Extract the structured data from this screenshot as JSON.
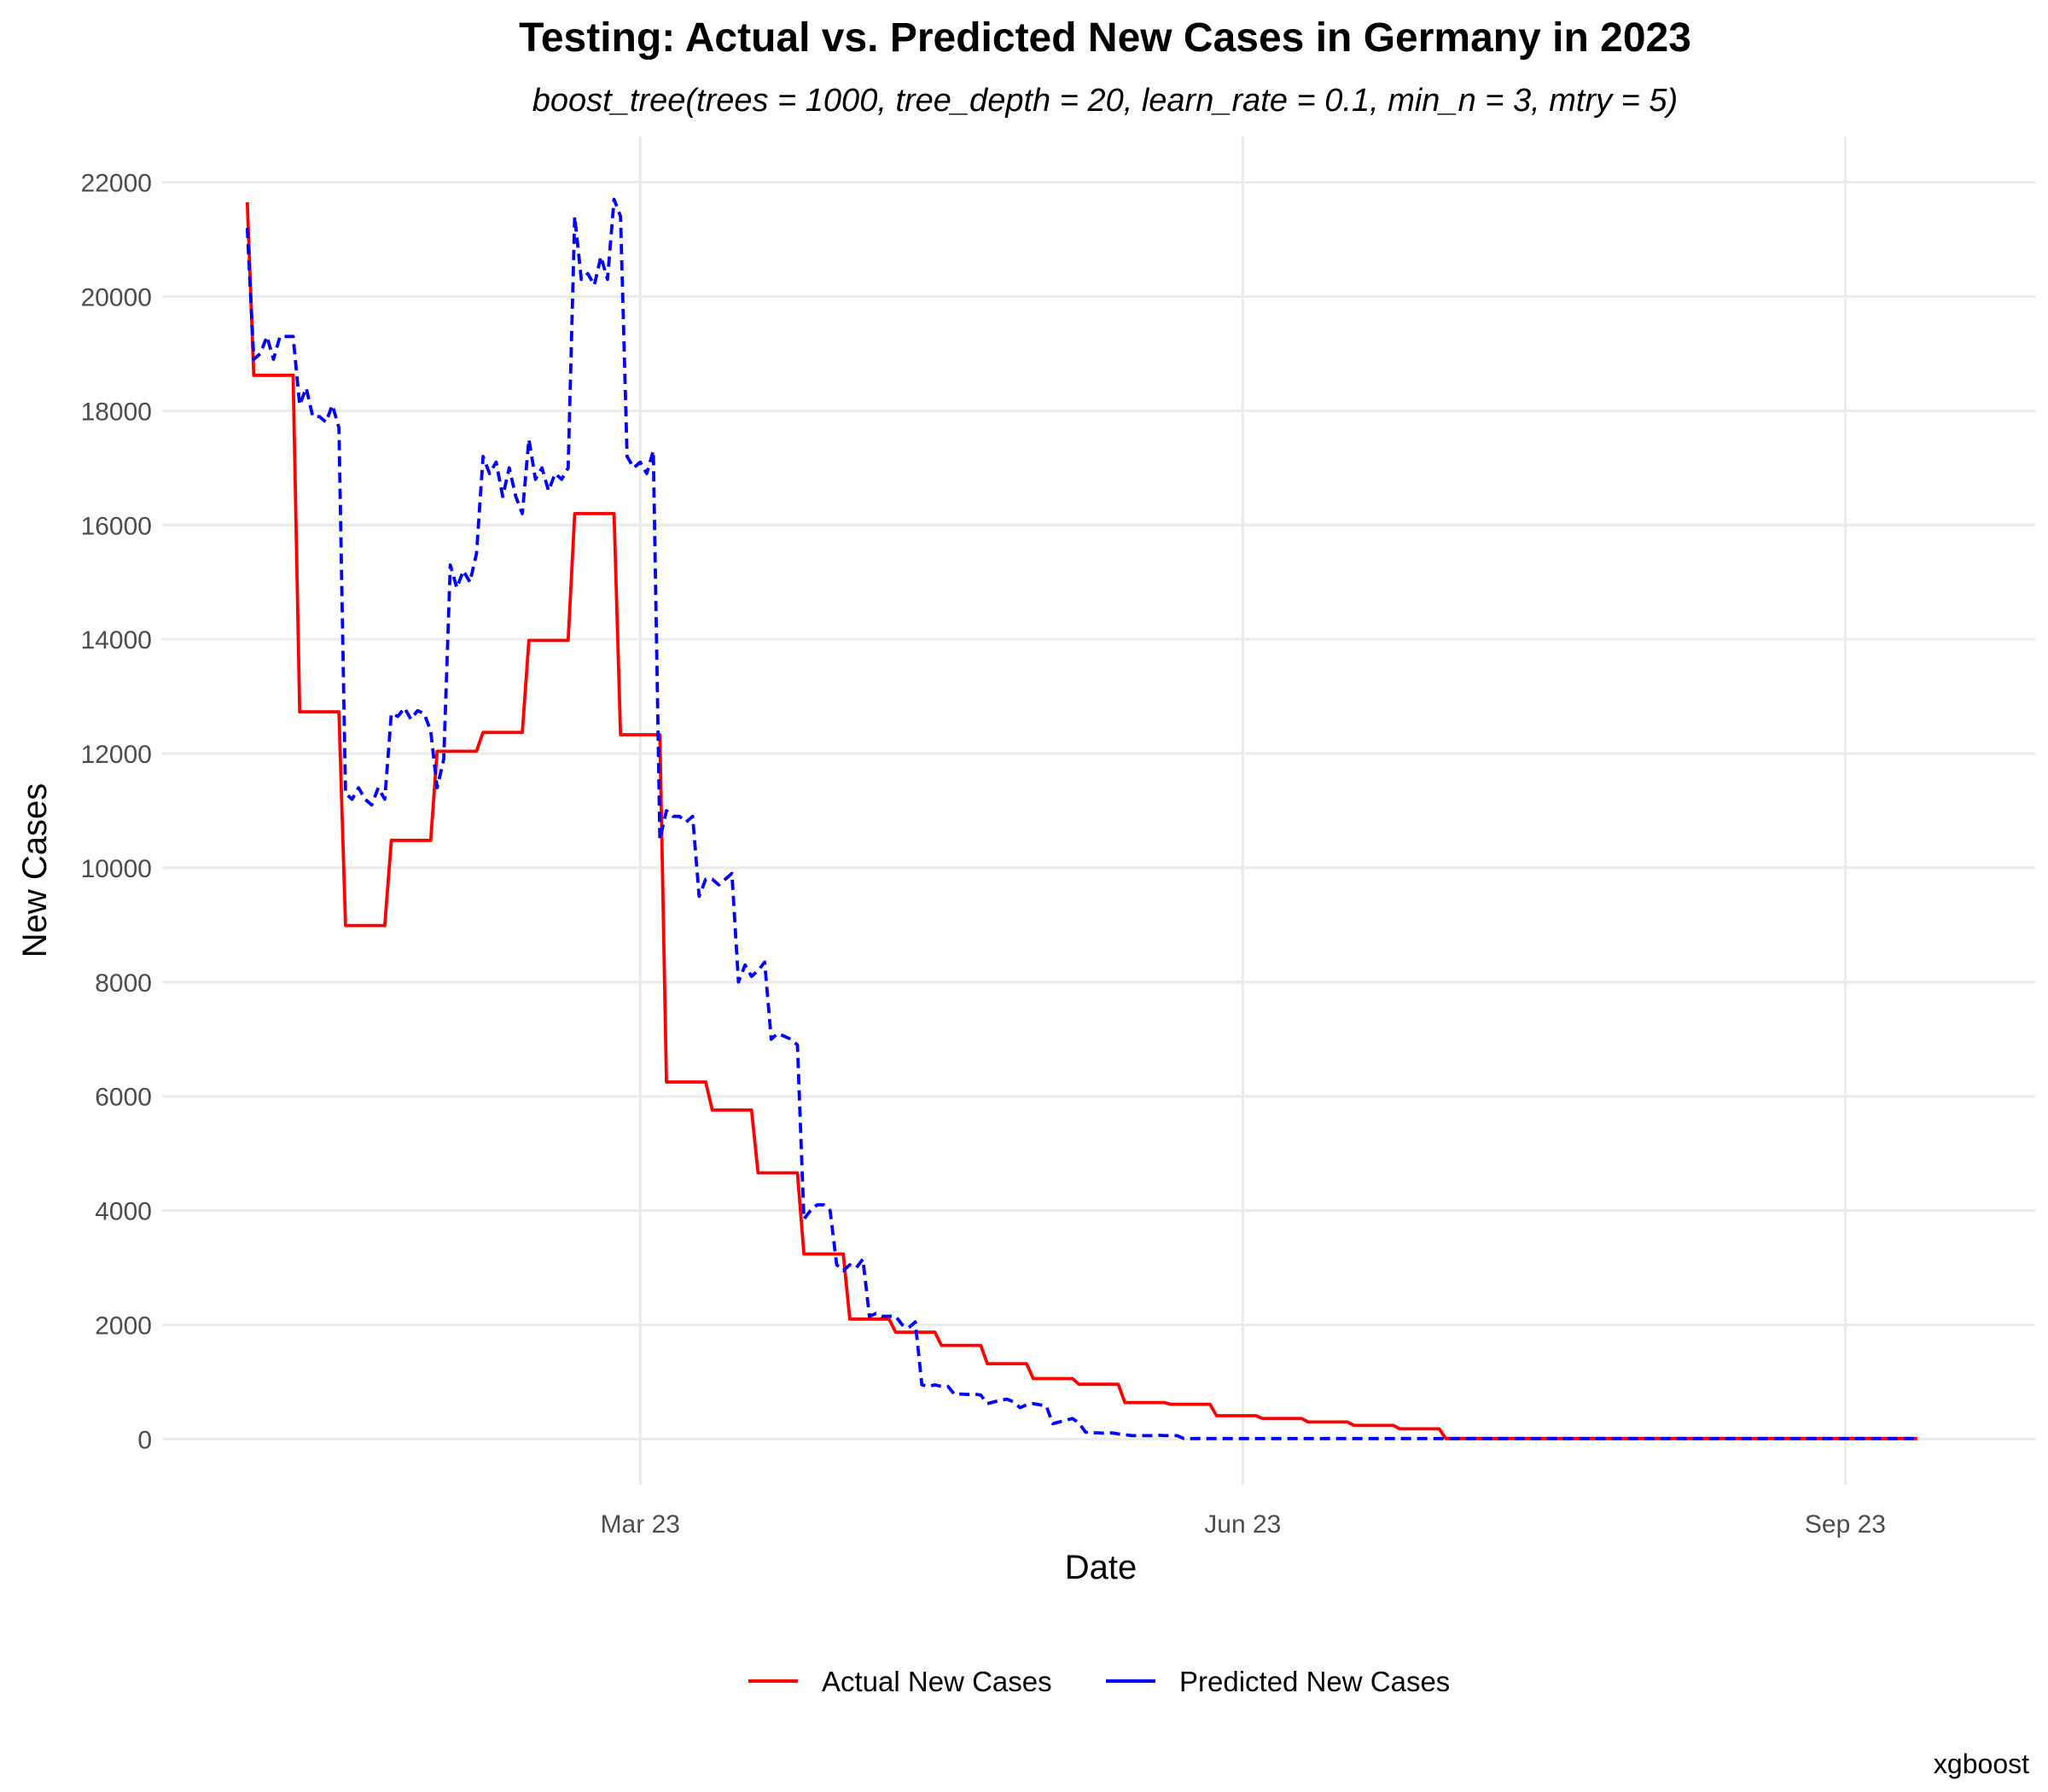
{
  "chart_data": {
    "type": "line",
    "title": "Testing: Actual vs. Predicted New Cases in Germany in 2023",
    "subtitle": "boost_tree(trees = 1000, tree_depth = 20, learn_rate = 0.1, min_n = 3, mtry = 5)",
    "xlabel": "Date",
    "ylabel": "New Cases",
    "caption": "xgboost",
    "x_ticks": [
      {
        "label": "Mar 23",
        "day": 60
      },
      {
        "label": "Jun 23",
        "day": 152
      },
      {
        "label": "Sep 23",
        "day": 244
      }
    ],
    "xlim_days": [
      -13,
      273
    ],
    "ylim": [
      -800,
      22800
    ],
    "y_ticks": [
      0,
      2000,
      4000,
      6000,
      8000,
      10000,
      12000,
      14000,
      16000,
      18000,
      20000,
      22000
    ],
    "grid": true,
    "legend_position": "bottom",
    "series": [
      {
        "name": "Actual New Cases",
        "color": "#ff0000",
        "dash": "solid",
        "points": [
          [
            0,
            21650
          ],
          [
            1,
            18620
          ],
          [
            7,
            18620
          ],
          [
            8,
            12730
          ],
          [
            14,
            12730
          ],
          [
            15,
            8990
          ],
          [
            21,
            8990
          ],
          [
            22,
            10480
          ],
          [
            28,
            10480
          ],
          [
            29,
            12040
          ],
          [
            35,
            12040
          ],
          [
            36,
            12370
          ],
          [
            42,
            12370
          ],
          [
            43,
            13980
          ],
          [
            49,
            13980
          ],
          [
            50,
            16200
          ],
          [
            56,
            16200
          ],
          [
            57,
            12330
          ],
          [
            63,
            12330
          ],
          [
            64,
            6250
          ],
          [
            70,
            6250
          ],
          [
            71,
            5760
          ],
          [
            77,
            5760
          ],
          [
            78,
            4660
          ],
          [
            84,
            4660
          ],
          [
            85,
            3240
          ],
          [
            91,
            3240
          ],
          [
            92,
            2100
          ],
          [
            98,
            2100
          ],
          [
            99,
            1870
          ],
          [
            105,
            1870
          ],
          [
            106,
            1640
          ],
          [
            112,
            1640
          ],
          [
            113,
            1320
          ],
          [
            119,
            1320
          ],
          [
            120,
            1060
          ],
          [
            126,
            1060
          ],
          [
            127,
            960
          ],
          [
            133,
            960
          ],
          [
            134,
            640
          ],
          [
            140,
            640
          ],
          [
            141,
            610
          ],
          [
            147,
            610
          ],
          [
            148,
            410
          ],
          [
            154,
            410
          ],
          [
            155,
            360
          ],
          [
            161,
            360
          ],
          [
            162,
            300
          ],
          [
            168,
            300
          ],
          [
            169,
            240
          ],
          [
            175,
            240
          ],
          [
            176,
            180
          ],
          [
            182,
            180
          ],
          [
            183,
            10
          ],
          [
            255,
            10
          ]
        ]
      },
      {
        "name": "Predicted New Cases",
        "color": "#0000ff",
        "dash": "dashed",
        "points": [
          [
            0,
            21200
          ],
          [
            1,
            18900
          ],
          [
            2,
            19000
          ],
          [
            3,
            19300
          ],
          [
            4,
            18900
          ],
          [
            5,
            19300
          ],
          [
            6,
            19300
          ],
          [
            7,
            19300
          ],
          [
            8,
            18100
          ],
          [
            9,
            18400
          ],
          [
            10,
            17900
          ],
          [
            11,
            17900
          ],
          [
            12,
            17800
          ],
          [
            13,
            18100
          ],
          [
            14,
            17700
          ],
          [
            15,
            11300
          ],
          [
            16,
            11200
          ],
          [
            17,
            11400
          ],
          [
            18,
            11200
          ],
          [
            19,
            11100
          ],
          [
            20,
            11400
          ],
          [
            21,
            11200
          ],
          [
            22,
            12700
          ],
          [
            23,
            12650
          ],
          [
            24,
            12800
          ],
          [
            25,
            12600
          ],
          [
            26,
            12750
          ],
          [
            27,
            12700
          ],
          [
            28,
            12400
          ],
          [
            29,
            11400
          ],
          [
            30,
            11900
          ],
          [
            31,
            15300
          ],
          [
            32,
            14900
          ],
          [
            33,
            15200
          ],
          [
            34,
            15000
          ],
          [
            35,
            15500
          ],
          [
            36,
            17200
          ],
          [
            37,
            16900
          ],
          [
            38,
            17100
          ],
          [
            39,
            16500
          ],
          [
            40,
            17000
          ],
          [
            41,
            16500
          ],
          [
            42,
            16200
          ],
          [
            43,
            17500
          ],
          [
            44,
            16800
          ],
          [
            45,
            17000
          ],
          [
            46,
            16600
          ],
          [
            47,
            16900
          ],
          [
            48,
            16800
          ],
          [
            49,
            17000
          ],
          [
            50,
            21400
          ],
          [
            51,
            20300
          ],
          [
            52,
            20400
          ],
          [
            53,
            20200
          ],
          [
            54,
            20700
          ],
          [
            55,
            20300
          ],
          [
            56,
            21700
          ],
          [
            57,
            21400
          ],
          [
            58,
            17200
          ],
          [
            59,
            17000
          ],
          [
            60,
            17100
          ],
          [
            61,
            16900
          ],
          [
            62,
            17300
          ],
          [
            63,
            10500
          ],
          [
            64,
            11000
          ],
          [
            65,
            10900
          ],
          [
            66,
            10900
          ],
          [
            67,
            10800
          ],
          [
            68,
            10900
          ],
          [
            69,
            9500
          ],
          [
            70,
            9800
          ],
          [
            71,
            9800
          ],
          [
            72,
            9700
          ],
          [
            73,
            9800
          ],
          [
            74,
            9900
          ],
          [
            75,
            8000
          ],
          [
            76,
            8300
          ],
          [
            77,
            8100
          ],
          [
            78,
            8200
          ],
          [
            79,
            8350
          ],
          [
            80,
            7000
          ],
          [
            81,
            7100
          ],
          [
            82,
            7050
          ],
          [
            83,
            7000
          ],
          [
            84,
            6900
          ],
          [
            85,
            3850
          ],
          [
            86,
            4000
          ],
          [
            87,
            4100
          ],
          [
            88,
            4100
          ],
          [
            89,
            4000
          ],
          [
            90,
            3050
          ],
          [
            91,
            2950
          ],
          [
            92,
            3050
          ],
          [
            93,
            3000
          ],
          [
            94,
            3150
          ],
          [
            95,
            2150
          ],
          [
            96,
            2200
          ],
          [
            97,
            2150
          ],
          [
            98,
            2150
          ],
          [
            99,
            2150
          ],
          [
            100,
            2000
          ],
          [
            101,
            1950
          ],
          [
            102,
            2050
          ],
          [
            103,
            950
          ],
          [
            104,
            920
          ],
          [
            105,
            950
          ],
          [
            106,
            920
          ],
          [
            107,
            920
          ],
          [
            108,
            780
          ],
          [
            109,
            790
          ],
          [
            110,
            780
          ],
          [
            111,
            790
          ],
          [
            112,
            770
          ],
          [
            113,
            620
          ],
          [
            114,
            650
          ],
          [
            115,
            680
          ],
          [
            116,
            700
          ],
          [
            117,
            650
          ],
          [
            118,
            550
          ],
          [
            119,
            600
          ],
          [
            120,
            620
          ],
          [
            121,
            600
          ],
          [
            122,
            580
          ],
          [
            123,
            270
          ],
          [
            124,
            300
          ],
          [
            125,
            330
          ],
          [
            126,
            360
          ],
          [
            127,
            280
          ],
          [
            128,
            120
          ],
          [
            129,
            110
          ],
          [
            130,
            110
          ],
          [
            131,
            100
          ],
          [
            132,
            110
          ],
          [
            133,
            90
          ],
          [
            134,
            80
          ],
          [
            135,
            60
          ],
          [
            136,
            60
          ],
          [
            137,
            60
          ],
          [
            138,
            60
          ],
          [
            139,
            70
          ],
          [
            140,
            60
          ],
          [
            141,
            60
          ],
          [
            142,
            60
          ],
          [
            143,
            10
          ],
          [
            255,
            10
          ]
        ]
      }
    ]
  }
}
